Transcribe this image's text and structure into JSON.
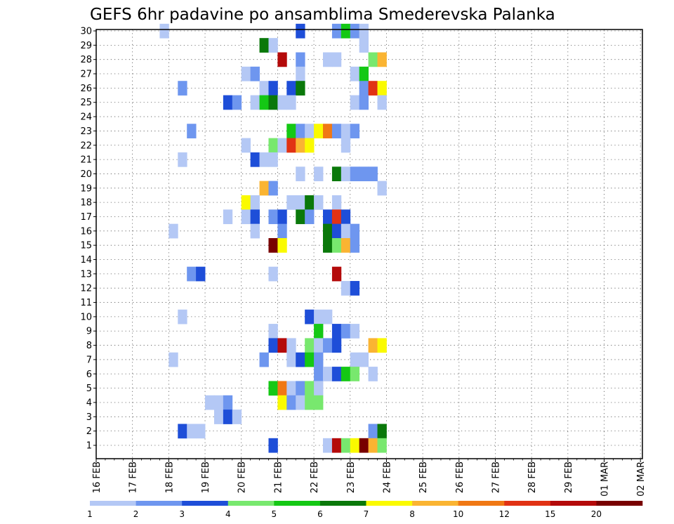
{
  "chart_data": {
    "type": "heatmap",
    "title": "GEFS 6hr padavine po ansamblima Smederevska Palanka",
    "y_categories": [
      "1",
      "2",
      "3",
      "4",
      "5",
      "6",
      "7",
      "8",
      "9",
      "10",
      "11",
      "12",
      "13",
      "14",
      "15",
      "16",
      "17",
      "18",
      "19",
      "20",
      "21",
      "22",
      "23",
      "24",
      "25",
      "26",
      "27",
      "28",
      "29",
      "30"
    ],
    "x_tick_labels": [
      "16 FEB",
      "17 FEB",
      "18 FEB",
      "19 FEB",
      "20 FEB",
      "21 FEB",
      "22 FEB",
      "23 FEB",
      "24 FEB",
      "25 FEB",
      "26 FEB",
      "27 FEB",
      "28 FEB",
      "29 FEB",
      "01 MAR",
      "02 MAR"
    ],
    "x_start": "16 FEB 00z",
    "x_step": "6hr",
    "grid": true,
    "legend": {
      "position": "bottom",
      "labels": [
        "1",
        "2",
        "3",
        "4",
        "5",
        "6",
        "7",
        "8",
        "10",
        "12",
        "15",
        "20"
      ],
      "colors": [
        "#b4c8f5",
        "#6e96ef",
        "#1e4ed8",
        "#78e86e",
        "#14c814",
        "#0a780a",
        "#fafa00",
        "#fab432",
        "#f07814",
        "#e13214",
        "#b40a0a",
        "#780000"
      ]
    },
    "cells": [
      [
        30,
        7,
        1
      ],
      [
        30,
        22,
        3
      ],
      [
        30,
        26,
        2
      ],
      [
        30,
        27,
        5
      ],
      [
        30,
        28,
        2
      ],
      [
        30,
        29,
        1
      ],
      [
        29,
        18,
        6
      ],
      [
        29,
        19,
        1
      ],
      [
        29,
        29,
        1
      ],
      [
        28,
        20,
        11
      ],
      [
        28,
        22,
        2
      ],
      [
        28,
        25,
        1
      ],
      [
        28,
        26,
        1
      ],
      [
        28,
        30,
        4
      ],
      [
        28,
        31,
        8
      ],
      [
        27,
        16,
        1
      ],
      [
        27,
        17,
        2
      ],
      [
        27,
        22,
        1
      ],
      [
        27,
        28,
        1
      ],
      [
        27,
        29,
        5
      ],
      [
        26,
        9,
        2
      ],
      [
        26,
        18,
        1
      ],
      [
        26,
        19,
        3
      ],
      [
        26,
        21,
        3
      ],
      [
        26,
        22,
        6
      ],
      [
        26,
        29,
        2
      ],
      [
        26,
        30,
        10
      ],
      [
        26,
        31,
        7
      ],
      [
        25,
        14,
        3
      ],
      [
        25,
        15,
        2
      ],
      [
        25,
        17,
        1
      ],
      [
        25,
        18,
        5
      ],
      [
        25,
        19,
        6
      ],
      [
        25,
        20,
        1
      ],
      [
        25,
        21,
        1
      ],
      [
        25,
        28,
        1
      ],
      [
        25,
        29,
        2
      ],
      [
        25,
        31,
        1
      ],
      [
        23,
        10,
        2
      ],
      [
        23,
        21,
        5
      ],
      [
        23,
        22,
        2
      ],
      [
        23,
        23,
        1
      ],
      [
        23,
        24,
        7
      ],
      [
        23,
        25,
        9
      ],
      [
        23,
        26,
        2
      ],
      [
        23,
        27,
        1
      ],
      [
        23,
        28,
        2
      ],
      [
        22,
        16,
        1
      ],
      [
        22,
        19,
        4
      ],
      [
        22,
        20,
        1
      ],
      [
        22,
        21,
        10
      ],
      [
        22,
        22,
        8
      ],
      [
        22,
        23,
        7
      ],
      [
        22,
        27,
        1
      ],
      [
        21,
        9,
        1
      ],
      [
        21,
        17,
        3
      ],
      [
        21,
        18,
        1
      ],
      [
        21,
        19,
        1
      ],
      [
        20,
        22,
        1
      ],
      [
        20,
        24,
        1
      ],
      [
        20,
        26,
        6
      ],
      [
        20,
        27,
        1
      ],
      [
        20,
        28,
        2
      ],
      [
        20,
        29,
        2
      ],
      [
        20,
        30,
        2
      ],
      [
        19,
        18,
        8
      ],
      [
        19,
        19,
        2
      ],
      [
        19,
        31,
        1
      ],
      [
        18,
        16,
        7
      ],
      [
        18,
        17,
        1
      ],
      [
        18,
        21,
        1
      ],
      [
        18,
        22,
        1
      ],
      [
        18,
        23,
        6
      ],
      [
        18,
        24,
        1
      ],
      [
        18,
        26,
        1
      ],
      [
        17,
        14,
        1
      ],
      [
        17,
        16,
        1
      ],
      [
        17,
        17,
        3
      ],
      [
        17,
        19,
        2
      ],
      [
        17,
        20,
        3
      ],
      [
        17,
        22,
        6
      ],
      [
        17,
        23,
        2
      ],
      [
        17,
        25,
        3
      ],
      [
        17,
        26,
        10
      ],
      [
        17,
        27,
        3
      ],
      [
        16,
        8,
        1
      ],
      [
        16,
        17,
        1
      ],
      [
        16,
        20,
        2
      ],
      [
        16,
        25,
        6
      ],
      [
        16,
        26,
        3
      ],
      [
        16,
        27,
        1
      ],
      [
        16,
        28,
        2
      ],
      [
        15,
        19,
        12
      ],
      [
        15,
        20,
        7
      ],
      [
        15,
        25,
        6
      ],
      [
        15,
        26,
        4
      ],
      [
        15,
        27,
        8
      ],
      [
        15,
        28,
        2
      ],
      [
        13,
        10,
        2
      ],
      [
        13,
        11,
        3
      ],
      [
        13,
        19,
        1
      ],
      [
        13,
        26,
        11
      ],
      [
        12,
        27,
        1
      ],
      [
        12,
        28,
        3
      ],
      [
        10,
        9,
        1
      ],
      [
        10,
        23,
        3
      ],
      [
        10,
        24,
        1
      ],
      [
        10,
        25,
        1
      ],
      [
        9,
        19,
        1
      ],
      [
        9,
        24,
        5
      ],
      [
        9,
        26,
        3
      ],
      [
        9,
        27,
        2
      ],
      [
        9,
        28,
        1
      ],
      [
        8,
        19,
        3
      ],
      [
        8,
        20,
        11
      ],
      [
        8,
        21,
        1
      ],
      [
        8,
        23,
        4
      ],
      [
        8,
        24,
        1
      ],
      [
        8,
        25,
        2
      ],
      [
        8,
        26,
        3
      ],
      [
        8,
        30,
        8
      ],
      [
        8,
        31,
        7
      ],
      [
        7,
        8,
        1
      ],
      [
        7,
        18,
        2
      ],
      [
        7,
        21,
        1
      ],
      [
        7,
        22,
        3
      ],
      [
        7,
        23,
        5
      ],
      [
        7,
        24,
        2
      ],
      [
        7,
        28,
        1
      ],
      [
        7,
        29,
        1
      ],
      [
        6,
        24,
        2
      ],
      [
        6,
        25,
        1
      ],
      [
        6,
        26,
        3
      ],
      [
        6,
        27,
        5
      ],
      [
        6,
        28,
        4
      ],
      [
        6,
        30,
        1
      ],
      [
        5,
        19,
        5
      ],
      [
        5,
        20,
        9
      ],
      [
        5,
        21,
        1
      ],
      [
        5,
        22,
        2
      ],
      [
        5,
        23,
        4
      ],
      [
        5,
        24,
        1
      ],
      [
        4,
        12,
        1
      ],
      [
        4,
        13,
        1
      ],
      [
        4,
        14,
        2
      ],
      [
        4,
        20,
        7
      ],
      [
        4,
        21,
        2
      ],
      [
        4,
        22,
        1
      ],
      [
        4,
        23,
        4
      ],
      [
        4,
        24,
        4
      ],
      [
        3,
        13,
        1
      ],
      [
        3,
        14,
        3
      ],
      [
        3,
        15,
        1
      ],
      [
        2,
        9,
        3
      ],
      [
        2,
        10,
        1
      ],
      [
        2,
        11,
        1
      ],
      [
        2,
        30,
        2
      ],
      [
        2,
        31,
        6
      ],
      [
        1,
        19,
        3
      ],
      [
        1,
        25,
        1
      ],
      [
        1,
        26,
        11
      ],
      [
        1,
        27,
        4
      ],
      [
        1,
        28,
        7
      ],
      [
        1,
        29,
        12
      ],
      [
        1,
        30,
        8
      ],
      [
        1,
        31,
        4
      ]
    ]
  }
}
